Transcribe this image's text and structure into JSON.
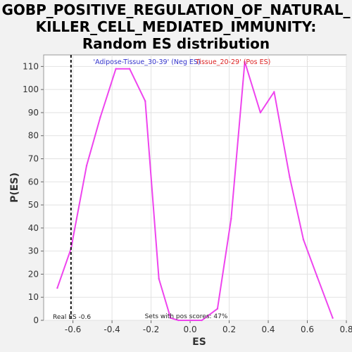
{
  "chart_data": {
    "type": "line",
    "title_lines": [
      "GOBP_POSITIVE_REGULATION_OF_NATURAL_",
      "KILLER_CELL_MEDIATED_IMMUNITY:",
      "Random ES distribution"
    ],
    "xlabel": "ES",
    "ylabel": "P(ES)",
    "xlim": [
      -0.75,
      0.8
    ],
    "ylim": [
      0,
      115
    ],
    "x_ticks": [
      -0.6,
      -0.4,
      -0.2,
      0.0,
      0.2,
      0.4,
      0.6,
      0.8
    ],
    "x_tick_labels": [
      "-0.6",
      "-0.4",
      "-0.2",
      "0.0",
      "0.2",
      "0.4",
      "0.6",
      "0.8"
    ],
    "y_ticks": [
      0,
      10,
      20,
      30,
      40,
      50,
      60,
      70,
      80,
      90,
      100,
      110
    ],
    "y_tick_labels": [
      "0",
      "10",
      "20",
      "30",
      "40",
      "50",
      "60",
      "70",
      "80",
      "90",
      "100",
      "110"
    ],
    "grid": true,
    "legend_placement": "top-center",
    "legend": [
      {
        "label": "'Adipose-Tissue_30-39' (Neg ES)",
        "color": "#3333cc"
      },
      {
        "label": "Tissue_20-29' (Pos ES)",
        "color": "#dd2222"
      }
    ],
    "series": [
      {
        "color": "#ee44ee",
        "points": [
          [
            -0.68,
            14
          ],
          [
            -0.61,
            31
          ],
          [
            -0.53,
            67
          ],
          [
            -0.46,
            88
          ],
          [
            -0.38,
            109
          ],
          [
            -0.31,
            109
          ],
          [
            -0.23,
            95
          ],
          [
            -0.16,
            18
          ],
          [
            -0.1,
            1
          ],
          [
            -0.06,
            0
          ],
          [
            0.0,
            0
          ],
          [
            0.06,
            0
          ],
          [
            0.14,
            5
          ],
          [
            0.21,
            44
          ],
          [
            0.28,
            112
          ],
          [
            0.36,
            90
          ],
          [
            0.43,
            99
          ],
          [
            0.51,
            62
          ],
          [
            0.58,
            35
          ],
          [
            0.65,
            19
          ],
          [
            0.73,
            1
          ]
        ]
      }
    ],
    "real_es": {
      "value": -0.61,
      "label": "Real ES -0.6"
    },
    "annotation": "Sets with pos scores: 47%"
  }
}
